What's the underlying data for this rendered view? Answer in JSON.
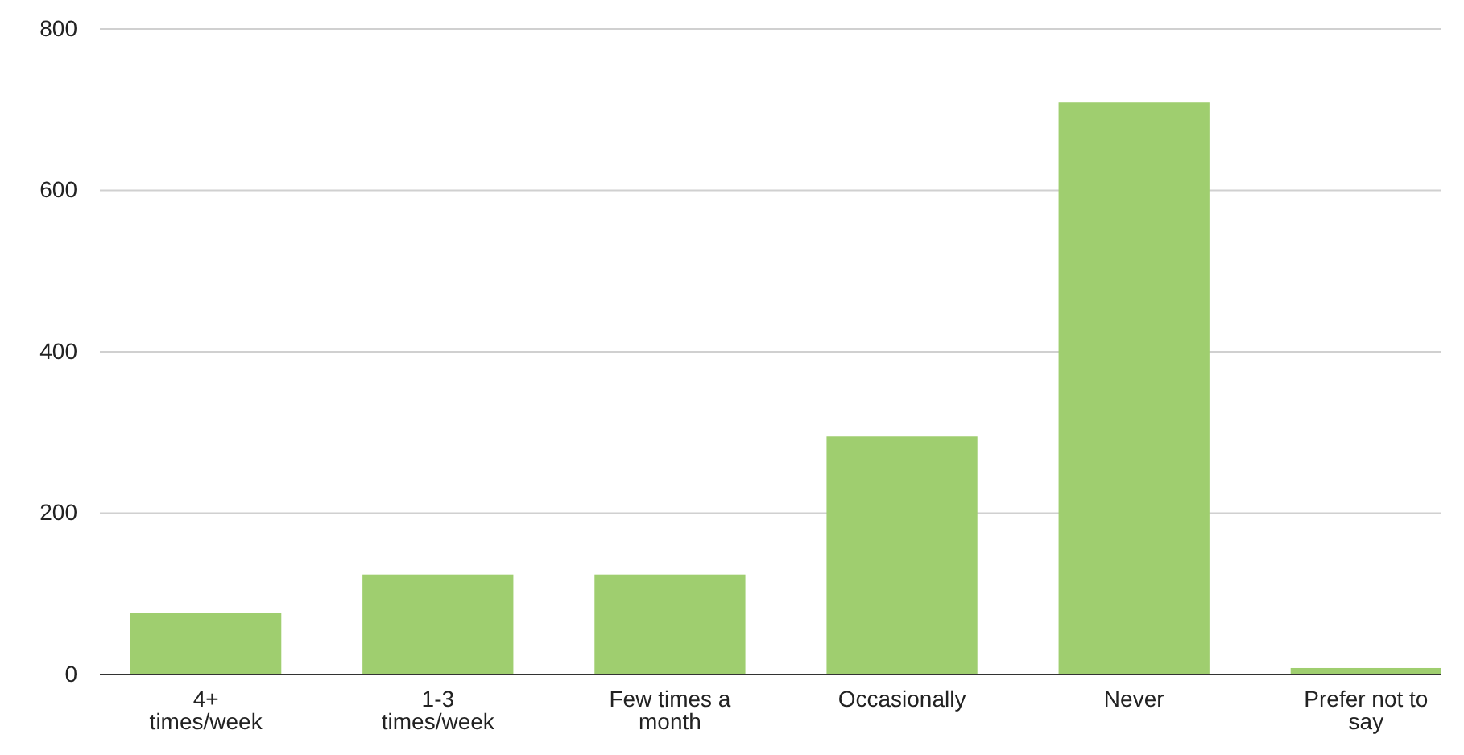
{
  "chart_data": {
    "type": "bar",
    "categories": [
      "4+ times/week",
      "1-3 times/week",
      "Few times a month",
      "Occasionally",
      "Never",
      "Prefer not to say"
    ],
    "values": [
      76,
      124,
      124,
      295,
      709,
      8
    ],
    "color": "#9fce6f",
    "ylim": [
      0,
      800
    ],
    "yticks": [
      0,
      200,
      400,
      600,
      800
    ],
    "grid": "y"
  }
}
